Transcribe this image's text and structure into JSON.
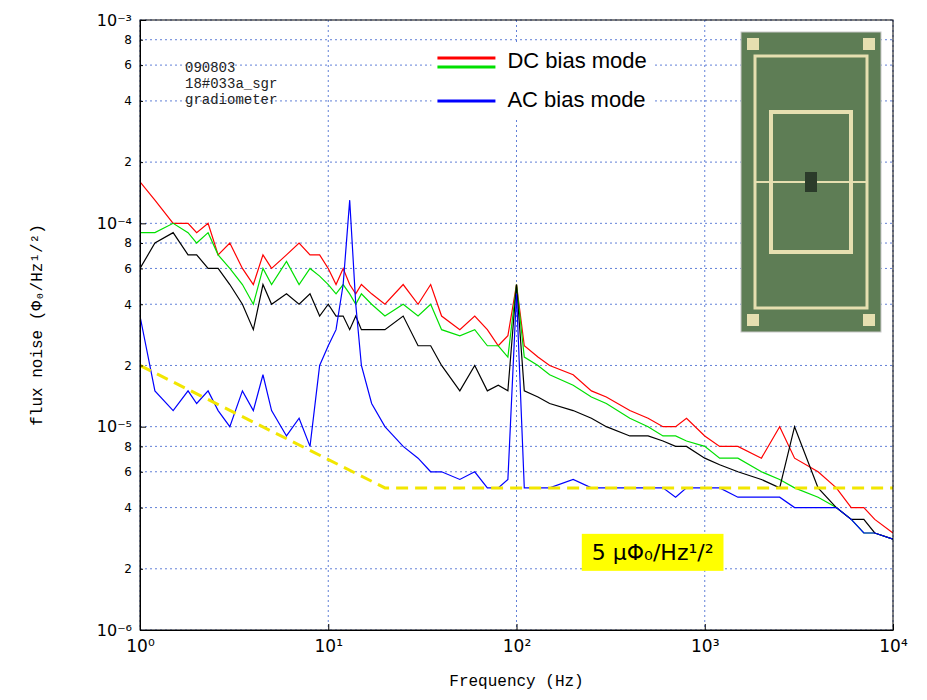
{
  "chart_data": {
    "type": "line",
    "log": true,
    "grid": true,
    "legend": "top",
    "x_label": "Frequency (Hz)",
    "y_label": "flux noise (Φ₀/Hz¹/²)",
    "note_lines": [
      "090803",
      "18#033a_sgr",
      "gradiometer"
    ],
    "level_label": "5 μΦ₀/Hz¹/²",
    "xlim": [
      1,
      10000
    ],
    "ylim": [
      1e-06,
      0.001
    ],
    "xticks": [
      {
        "value": 1,
        "label": "10⁰"
      },
      {
        "value": 10,
        "label": "10¹"
      },
      {
        "value": 100,
        "label": "10²"
      },
      {
        "value": 1000,
        "label": "10³"
      },
      {
        "value": 10000,
        "label": "10⁴"
      }
    ],
    "yticks": [
      {
        "value": 0.001,
        "label": "10⁻³"
      },
      {
        "value": 0.0008,
        "label": "8"
      },
      {
        "value": 0.0006,
        "label": "6"
      },
      {
        "value": 0.0004,
        "label": "4"
      },
      {
        "value": 0.0002,
        "label": "2"
      },
      {
        "value": 0.0001,
        "label": "10⁻⁴"
      },
      {
        "value": 8e-05,
        "label": "8"
      },
      {
        "value": 6e-05,
        "label": "6"
      },
      {
        "value": 4e-05,
        "label": "4"
      },
      {
        "value": 2e-05,
        "label": "2"
      },
      {
        "value": 1e-05,
        "label": "10⁻⁵"
      },
      {
        "value": 8e-06,
        "label": "8"
      },
      {
        "value": 6e-06,
        "label": "6"
      },
      {
        "value": 4e-06,
        "label": "4"
      },
      {
        "value": 2e-06,
        "label": "2"
      },
      {
        "value": 1e-06,
        "label": "10⁻⁶"
      }
    ],
    "x": [
      1,
      1.2,
      1.5,
      1.8,
      2,
      2.3,
      2.6,
      3,
      3.5,
      4,
      4.5,
      5,
      6,
      7,
      8,
      9,
      10,
      11,
      12,
      13,
      14,
      15,
      17,
      20,
      25,
      30,
      35,
      40,
      50,
      60,
      70,
      80,
      90,
      100,
      110,
      130,
      150,
      200,
      250,
      300,
      400,
      500,
      600,
      700,
      800,
      1000,
      1200,
      1500,
      2000,
      2500,
      3000,
      4000,
      5000,
      6000,
      7000,
      8000,
      10000
    ],
    "series": [
      {
        "name": "DC bias mode",
        "color": "#ff0000",
        "values": [
          0.00016,
          0.00013,
          0.0001,
          0.0001,
          9e-05,
          0.0001,
          7e-05,
          8e-05,
          6e-05,
          5e-05,
          7e-05,
          6e-05,
          7e-05,
          8e-05,
          7e-05,
          7e-05,
          6e-05,
          5e-05,
          6e-05,
          5e-05,
          4.5e-05,
          5e-05,
          4.5e-05,
          4e-05,
          5e-05,
          4e-05,
          5e-05,
          3.5e-05,
          3e-05,
          3.5e-05,
          3e-05,
          2.5e-05,
          2.8e-05,
          5e-05,
          2.5e-05,
          2.2e-05,
          2e-05,
          1.8e-05,
          1.5e-05,
          1.4e-05,
          1.2e-05,
          1.1e-05,
          1e-05,
          1e-05,
          1.1e-05,
          9e-06,
          8e-06,
          8e-06,
          7e-06,
          1e-05,
          7e-06,
          6e-06,
          5e-06,
          4e-06,
          4e-06,
          3.5e-06,
          3e-06
        ]
      },
      {
        "name": "DC bias mode",
        "color": "#00e000",
        "values": [
          9e-05,
          9e-05,
          0.0001,
          9e-05,
          8e-05,
          9e-05,
          7e-05,
          6e-05,
          5e-05,
          4e-05,
          6e-05,
          5e-05,
          6.5e-05,
          5e-05,
          6e-05,
          5.5e-05,
          5e-05,
          4.5e-05,
          5e-05,
          4.5e-05,
          4e-05,
          4.5e-05,
          4e-05,
          3.5e-05,
          4e-05,
          3.5e-05,
          4e-05,
          3e-05,
          2.8e-05,
          3e-05,
          2.5e-05,
          2.5e-05,
          2.2e-05,
          5e-05,
          2.2e-05,
          2e-05,
          1.8e-05,
          1.6e-05,
          1.4e-05,
          1.3e-05,
          1.1e-05,
          1e-05,
          9e-06,
          9e-06,
          8.5e-06,
          8e-06,
          7e-06,
          7e-06,
          6e-06,
          5.5e-06,
          5e-06,
          4.5e-06,
          4e-06,
          3.5e-06,
          3e-06,
          3e-06,
          2.8e-06
        ]
      },
      {
        "color": "#000000",
        "values": [
          6e-05,
          8e-05,
          9e-05,
          7e-05,
          7e-05,
          6e-05,
          6e-05,
          5e-05,
          4e-05,
          3e-05,
          5e-05,
          4e-05,
          4.5e-05,
          4e-05,
          4.5e-05,
          3.5e-05,
          4e-05,
          3.5e-05,
          3.5e-05,
          3e-05,
          3.5e-05,
          3e-05,
          3e-05,
          3e-05,
          3.5e-05,
          2.5e-05,
          2.5e-05,
          2e-05,
          1.5e-05,
          2e-05,
          1.5e-05,
          1.6e-05,
          1.5e-05,
          5e-05,
          1.5e-05,
          1.4e-05,
          1.3e-05,
          1.2e-05,
          1.1e-05,
          1e-05,
          9e-06,
          9e-06,
          8.5e-06,
          8e-06,
          8e-06,
          7e-06,
          6.5e-06,
          6e-06,
          5.5e-06,
          5e-06,
          1e-05,
          5e-06,
          4e-06,
          3.5e-06,
          3.5e-06,
          3e-06,
          2.8e-06
        ]
      },
      {
        "name": "AC bias mode",
        "color": "#0000ff",
        "values": [
          3.5e-05,
          1.5e-05,
          1.2e-05,
          1.5e-05,
          1.3e-05,
          1.5e-05,
          1.2e-05,
          1e-05,
          1.5e-05,
          1.2e-05,
          1.8e-05,
          1.2e-05,
          9e-06,
          1.1e-05,
          8e-06,
          2e-05,
          2.5e-05,
          3e-05,
          5e-05,
          0.00013,
          4e-05,
          2e-05,
          1.3e-05,
          1e-05,
          8e-06,
          7e-06,
          6e-06,
          6e-06,
          5.5e-06,
          6e-06,
          5e-06,
          5e-06,
          5.5e-06,
          4.5e-05,
          5e-06,
          5e-06,
          5e-06,
          5.5e-06,
          5e-06,
          5e-06,
          5e-06,
          5e-06,
          5e-06,
          4.5e-06,
          5e-06,
          5e-06,
          5e-06,
          4.5e-06,
          4.5e-06,
          4.5e-06,
          4e-06,
          4e-06,
          4e-06,
          3.5e-06,
          3e-06,
          3e-06,
          2.8e-06
        ]
      },
      {
        "color": "#f2e600",
        "line_style": "dashed",
        "x": [
          1,
          20,
          10000
        ],
        "values": [
          2e-05,
          5e-06,
          5e-06
        ]
      }
    ]
  }
}
